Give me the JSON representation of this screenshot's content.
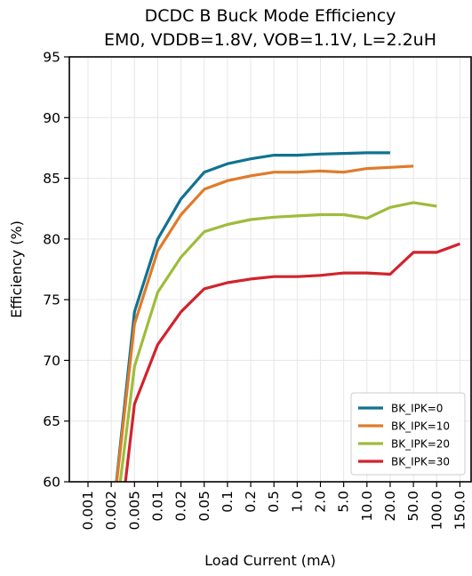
{
  "chart_data": {
    "type": "line",
    "title": "DCDC B Buck Mode Efficiency",
    "subtitle": "EM0, VDDB=1.8V, VOB=1.1V, L=2.2uH",
    "xlabel": "Load Current (mA)",
    "ylabel": "Efficiency (%)",
    "x_scale": "categorical",
    "categories": [
      "0.001",
      "0.002",
      "0.005",
      "0.01",
      "0.02",
      "0.05",
      "0.1",
      "0.2",
      "0.5",
      "1.0",
      "2.0",
      "5.0",
      "10.0",
      "20.0",
      "50.0",
      "100.0",
      "150.0"
    ],
    "ylim": [
      60,
      95
    ],
    "yticks": [
      "60",
      "65",
      "70",
      "75",
      "80",
      "85",
      "90",
      "95"
    ],
    "grid": true,
    "legend_position": "lower-right",
    "series": [
      {
        "name": "BK_IPK=0",
        "color": "#0f7391",
        "values": [
          null,
          56.0,
          74.0,
          80.0,
          83.3,
          85.5,
          86.2,
          86.6,
          86.9,
          86.9,
          87.0,
          87.05,
          87.1,
          87.1,
          null,
          null,
          null
        ]
      },
      {
        "name": "BK_IPK=10",
        "color": "#e07b2a",
        "values": [
          null,
          56.0,
          73.0,
          79.0,
          82.0,
          84.1,
          84.8,
          85.2,
          85.5,
          85.5,
          85.6,
          85.5,
          85.8,
          85.9,
          86.0,
          null,
          null
        ]
      },
      {
        "name": "BK_IPK=20",
        "color": "#9ebc3c",
        "values": [
          null,
          54.0,
          69.5,
          75.6,
          78.5,
          80.6,
          81.2,
          81.6,
          81.8,
          81.9,
          82.0,
          82.0,
          81.7,
          82.6,
          83.0,
          82.7,
          null
        ]
      },
      {
        "name": "BK_IPK=30",
        "color": "#d2232d",
        "values": [
          null,
          50.0,
          66.4,
          71.3,
          74.0,
          75.9,
          76.4,
          76.7,
          76.9,
          76.9,
          77.0,
          77.2,
          77.2,
          77.1,
          78.9,
          78.9,
          79.6
        ]
      }
    ]
  }
}
